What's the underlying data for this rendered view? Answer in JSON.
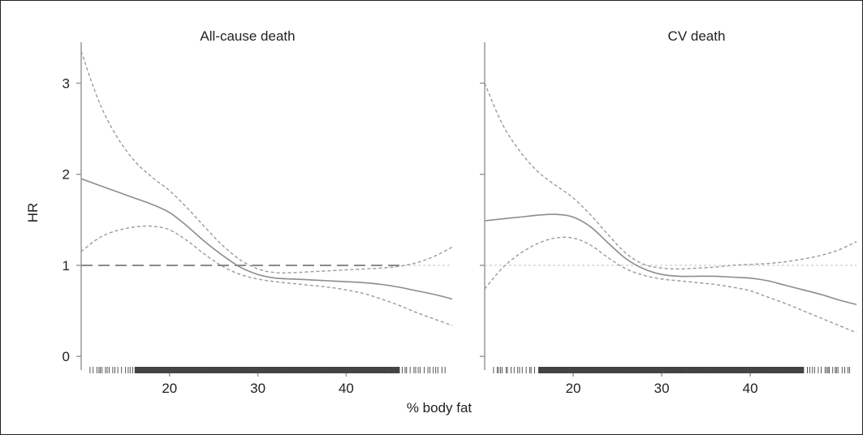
{
  "figure": {
    "xlabel": "% body fat",
    "ylabel": "HR"
  },
  "chart_data": [
    {
      "type": "line",
      "title": "All-cause death",
      "xlim": [
        10,
        52
      ],
      "ylim": [
        -0.15,
        3.45
      ],
      "x_ticks": [
        20,
        30,
        40
      ],
      "x_tick_labels": [
        "20",
        "30",
        "40"
      ],
      "y_ticks": [
        0,
        1,
        2,
        3
      ],
      "y_tick_labels": [
        "0",
        "1",
        "2",
        "3"
      ],
      "reference_line": {
        "y": 1,
        "style": "dashed",
        "x_range": [
          10,
          46.5
        ]
      },
      "series": [
        {
          "role": "estimate",
          "x": [
            10,
            12,
            14,
            16,
            18,
            20,
            22,
            24,
            26,
            28,
            30,
            32,
            34,
            36,
            38,
            40,
            42,
            44,
            46,
            48,
            50,
            52
          ],
          "values": [
            1.95,
            1.88,
            1.81,
            1.74,
            1.67,
            1.58,
            1.43,
            1.26,
            1.11,
            0.98,
            0.9,
            0.86,
            0.85,
            0.84,
            0.83,
            0.82,
            0.81,
            0.79,
            0.76,
            0.72,
            0.68,
            0.63
          ]
        },
        {
          "role": "upper",
          "x": [
            10,
            12,
            14,
            16,
            18,
            20,
            22,
            24,
            26,
            28,
            30,
            32,
            34,
            36,
            38,
            40,
            42,
            44,
            46,
            48,
            50,
            52
          ],
          "values": [
            3.35,
            2.8,
            2.42,
            2.15,
            1.97,
            1.82,
            1.63,
            1.42,
            1.22,
            1.06,
            0.96,
            0.92,
            0.92,
            0.93,
            0.94,
            0.95,
            0.96,
            0.97,
            0.99,
            1.03,
            1.1,
            1.2
          ]
        },
        {
          "role": "lower",
          "x": [
            10,
            12,
            14,
            16,
            18,
            20,
            22,
            24,
            26,
            28,
            30,
            32,
            34,
            36,
            38,
            40,
            42,
            44,
            46,
            48,
            50,
            52
          ],
          "values": [
            1.15,
            1.3,
            1.38,
            1.42,
            1.43,
            1.39,
            1.27,
            1.12,
            0.99,
            0.9,
            0.85,
            0.82,
            0.8,
            0.78,
            0.76,
            0.73,
            0.69,
            0.63,
            0.56,
            0.48,
            0.41,
            0.34
          ]
        }
      ]
    },
    {
      "type": "line",
      "title": "CV death",
      "xlim": [
        10,
        52
      ],
      "ylim": [
        -0.15,
        3.45
      ],
      "x_ticks": [
        20,
        30,
        40
      ],
      "x_tick_labels": [
        "20",
        "30",
        "40"
      ],
      "y_ticks": [
        0,
        1,
        2,
        3
      ],
      "y_tick_labels": [],
      "reference_line": {
        "y": 1,
        "style": "dotted",
        "x_range": [
          10,
          52
        ]
      },
      "series": [
        {
          "role": "estimate",
          "x": [
            10,
            12,
            14,
            16,
            18,
            20,
            22,
            24,
            26,
            28,
            30,
            32,
            34,
            36,
            38,
            40,
            42,
            44,
            46,
            48,
            50,
            52
          ],
          "values": [
            1.49,
            1.51,
            1.53,
            1.55,
            1.56,
            1.53,
            1.42,
            1.24,
            1.07,
            0.96,
            0.9,
            0.88,
            0.88,
            0.88,
            0.87,
            0.86,
            0.83,
            0.78,
            0.73,
            0.68,
            0.62,
            0.57
          ]
        },
        {
          "role": "upper",
          "x": [
            10,
            12,
            14,
            16,
            18,
            20,
            22,
            24,
            26,
            28,
            30,
            32,
            34,
            36,
            38,
            40,
            42,
            44,
            46,
            48,
            50,
            52
          ],
          "values": [
            3.0,
            2.55,
            2.25,
            2.03,
            1.88,
            1.74,
            1.55,
            1.33,
            1.13,
            1.01,
            0.97,
            0.96,
            0.97,
            0.98,
            1.0,
            1.01,
            1.02,
            1.04,
            1.07,
            1.11,
            1.17,
            1.26
          ]
        },
        {
          "role": "lower",
          "x": [
            10,
            12,
            14,
            16,
            18,
            20,
            22,
            24,
            26,
            28,
            30,
            32,
            34,
            36,
            38,
            40,
            42,
            44,
            46,
            48,
            50,
            52
          ],
          "values": [
            0.74,
            0.97,
            1.13,
            1.24,
            1.3,
            1.3,
            1.22,
            1.08,
            0.96,
            0.89,
            0.85,
            0.83,
            0.81,
            0.79,
            0.76,
            0.72,
            0.65,
            0.58,
            0.5,
            0.42,
            0.34,
            0.26
          ]
        }
      ]
    }
  ],
  "rug": {
    "x_min": 11,
    "x_max": 51.5,
    "dense_min": 16,
    "dense_max": 46
  },
  "colors": {
    "estimate": "#8c8c8c",
    "ci": "#9a9a9a",
    "reference_all": "#8a8a8a",
    "reference_cv": "#c8c8c8",
    "axis": "#9a9a9a",
    "rug": "#444444",
    "text": "#222222"
  }
}
